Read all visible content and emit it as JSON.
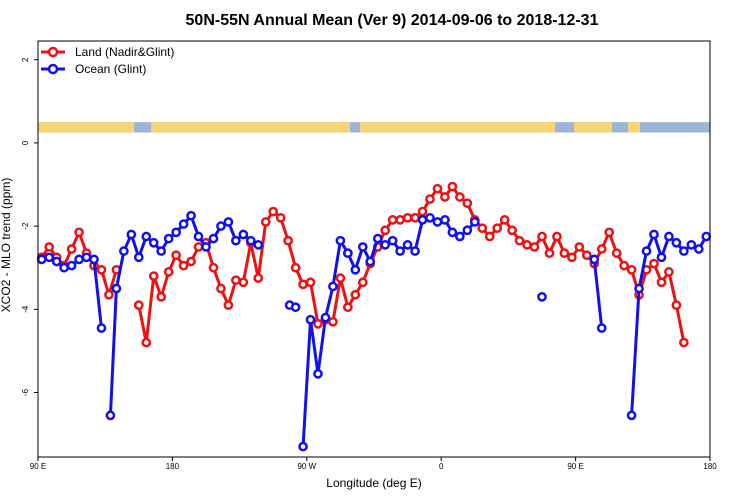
{
  "chart_data": {
    "type": "line",
    "title": "50N-55N Annual Mean (Ver 9)   2014-09-06 to 2018-12-31",
    "xlabel": "Longitude (deg E)",
    "ylabel": "XCO2 - MLO trend (ppm)",
    "xlim": [
      90,
      540
    ],
    "ylim": [
      -7.55,
      2.45
    ],
    "x_ticks": [
      {
        "value": 90,
        "label": "90 E"
      },
      {
        "value": 180,
        "label": "180"
      },
      {
        "value": 270,
        "label": "90 W"
      },
      {
        "value": 360,
        "label": "0"
      },
      {
        "value": 450,
        "label": "90 E"
      },
      {
        "value": 540,
        "label": "180"
      }
    ],
    "y_ticks": [
      {
        "value": -6,
        "label": "-6"
      },
      {
        "value": -4,
        "label": "-4"
      },
      {
        "value": -2,
        "label": "-2"
      },
      {
        "value": 0,
        "label": "0"
      },
      {
        "value": 2,
        "label": "2"
      }
    ],
    "land_ocean_strip": {
      "y_from": 0.25,
      "y_to": 0.5,
      "land_color": "#f5d575",
      "ocean_color": "#9fb5d8"
    },
    "series": [
      {
        "name": "Land (Nadir&Glint)",
        "color": "#ee1111",
        "x": [
          92.5,
          97.5,
          102.5,
          107.5,
          112.5,
          117.5,
          122.5,
          127.5,
          132.5,
          137.5,
          142.5,
          null,
          157.5,
          162.5,
          167.5,
          172.5,
          177.5,
          182.5,
          187.5,
          192.5,
          197.5,
          202.5,
          207.5,
          212.5,
          217.5,
          222.5,
          null,
          227.5,
          232.5,
          237.5,
          242.5,
          247.5,
          252.5,
          257.5,
          262.5,
          267.5,
          272.5,
          277.5,
          282.5,
          287.5,
          292.5,
          297.5,
          302.5,
          307.5,
          312.5,
          317.5,
          322.5,
          327.5,
          332.5,
          337.5,
          342.5,
          347.5,
          352.5,
          357.5,
          362.5,
          367.5,
          372.5,
          377.5,
          382.5,
          387.5,
          392.5,
          397.5,
          402.5,
          407.5,
          412.5,
          417.5,
          422.5,
          427.5,
          432.5,
          437.5,
          442.5,
          447.5,
          452.5,
          457.5,
          462.5,
          467.5,
          472.5,
          477.5,
          482.5,
          487.5,
          492.5,
          497.5,
          502.5,
          507.5,
          512.5,
          517.5,
          522.5
        ],
        "y": [
          -2.75,
          -2.5,
          -2.75,
          -2.95,
          -2.55,
          -2.15,
          -2.65,
          -2.95,
          -3.05,
          -3.65,
          -3.05,
          null,
          -3.9,
          -4.8,
          -3.2,
          -3.7,
          -3.1,
          -2.7,
          -2.95,
          -2.85,
          -2.5,
          -2.4,
          -3.0,
          -3.5,
          -3.9,
          -3.3,
          null,
          -3.35,
          -2.4,
          -3.25,
          -1.9,
          -1.65,
          -1.8,
          -2.35,
          -3.0,
          -3.4,
          -3.35,
          -4.35,
          -4.25,
          -4.3,
          -3.25,
          -3.95,
          -3.65,
          -3.35,
          -2.9,
          -2.5,
          -2.1,
          -1.85,
          -1.85,
          -1.8,
          -1.8,
          -1.65,
          -1.35,
          -1.1,
          -1.3,
          -1.05,
          -1.3,
          -1.45,
          -1.85,
          -2.05,
          -2.25,
          -2.05,
          -1.85,
          -2.1,
          -2.35,
          -2.45,
          -2.5,
          -2.25,
          -2.65,
          -2.25,
          -2.65,
          -2.75,
          -2.5,
          -2.7,
          -2.9,
          -2.55,
          -2.15,
          -2.65,
          -2.95,
          -3.05,
          -3.65,
          -3.05,
          -2.9,
          -3.35,
          -3.1,
          -3.9,
          -4.8
        ]
      },
      {
        "name": "Ocean (Glint)",
        "color": "#1111ee",
        "x": [
          92.5,
          97.5,
          102.5,
          107.5,
          112.5,
          117.5,
          122.5,
          127.5,
          132.5,
          null,
          138.5,
          142.5,
          147.5,
          152.5,
          157.5,
          162.5,
          167.5,
          172.5,
          177.5,
          182.5,
          187.5,
          192.5,
          197.5,
          202.5,
          207.5,
          212.5,
          217.5,
          222.5,
          227.5,
          232.5,
          237.5,
          null,
          258.5,
          262.5,
          null,
          267.5,
          272.5,
          277.5,
          282.5,
          287.5,
          292.5,
          297.5,
          302.5,
          307.5,
          312.5,
          317.5,
          322.5,
          327.5,
          332.5,
          337.5,
          342.5,
          347.5,
          352.5,
          357.5,
          362.5,
          367.5,
          372.5,
          377.5,
          382.5,
          null,
          427.5,
          null,
          462.5,
          467.5,
          null,
          487.5,
          492.5,
          497.5,
          502.5,
          507.5,
          512.5,
          517.5,
          522.5,
          527.5,
          532.5,
          537.5
        ],
        "y": [
          -2.8,
          -2.75,
          -2.85,
          -3.0,
          -2.95,
          -2.8,
          -2.75,
          -2.8,
          -4.45,
          null,
          -6.55,
          -3.5,
          -2.6,
          -2.2,
          -2.75,
          -2.25,
          -2.4,
          -2.6,
          -2.3,
          -2.15,
          -1.95,
          -1.75,
          -2.25,
          -2.5,
          -2.3,
          -2.0,
          -1.9,
          -2.35,
          -2.2,
          -2.35,
          -2.45,
          null,
          -3.9,
          -3.95,
          null,
          -7.3,
          -4.25,
          -5.55,
          -4.2,
          -3.45,
          -2.35,
          -2.65,
          -3.05,
          -2.5,
          -2.85,
          -2.3,
          -2.45,
          -2.35,
          -2.6,
          -2.45,
          -2.6,
          -1.85,
          -1.8,
          -1.9,
          -1.85,
          -2.15,
          -2.25,
          -2.1,
          -1.9,
          null,
          -3.7,
          null,
          -2.8,
          -4.45,
          null,
          -6.55,
          -3.5,
          -2.6,
          -2.2,
          -2.75,
          -2.25,
          -2.4,
          -2.6,
          -2.45,
          -2.55,
          -2.25
        ]
      }
    ],
    "legend_position": "top-left"
  }
}
